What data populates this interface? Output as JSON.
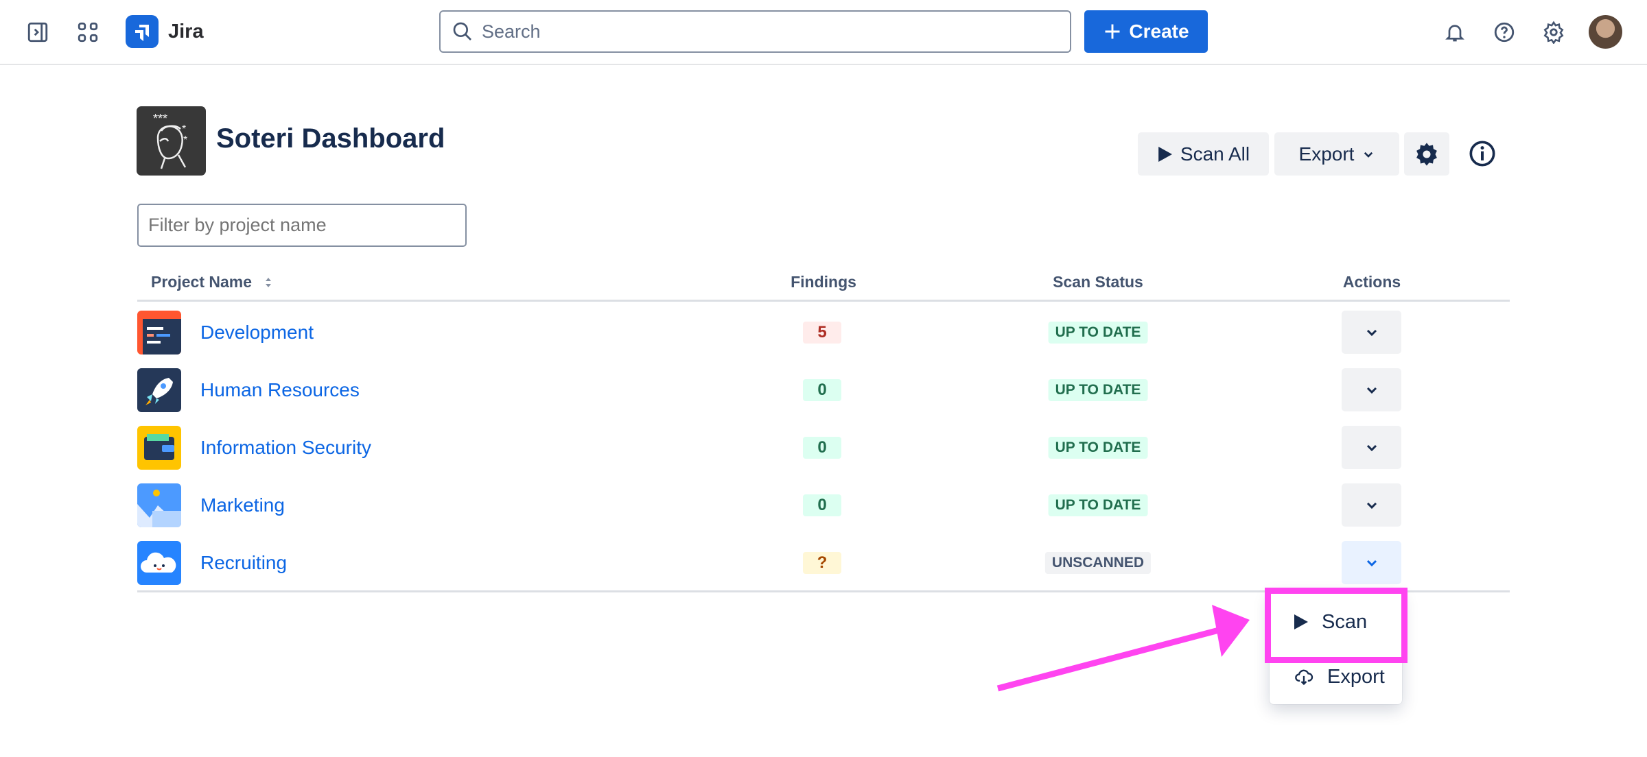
{
  "topbar": {
    "app_name": "Jira",
    "search_placeholder": "Search",
    "create_label": "Create"
  },
  "page": {
    "title": "Soteri Dashboard",
    "scan_all_label": "Scan All",
    "export_label": "Export",
    "filter_placeholder": "Filter by project name"
  },
  "table": {
    "headers": {
      "name": "Project Name",
      "findings": "Findings",
      "status": "Scan Status",
      "actions": "Actions"
    },
    "rows": [
      {
        "name": "Development",
        "findings": "5",
        "status": "UP TO DATE",
        "icon": "code-window"
      },
      {
        "name": "Human Resources",
        "findings": "0",
        "status": "UP TO DATE",
        "icon": "rocket"
      },
      {
        "name": "Information Security",
        "findings": "0",
        "status": "UP TO DATE",
        "icon": "wallet"
      },
      {
        "name": "Marketing",
        "findings": "0",
        "status": "UP TO DATE",
        "icon": "mountains"
      },
      {
        "name": "Recruiting",
        "findings": "?",
        "status": "UNSCANNED",
        "icon": "cloud"
      }
    ]
  },
  "menu": {
    "scan_label": "Scan",
    "export_label": "Export"
  },
  "colors": {
    "accent": "#1868db",
    "link": "#0c66e4",
    "annotation": "#ff44f0",
    "danger_bg": "#ffeceb",
    "success_bg": "#dcfff1",
    "warning_bg": "#fff7d6"
  }
}
